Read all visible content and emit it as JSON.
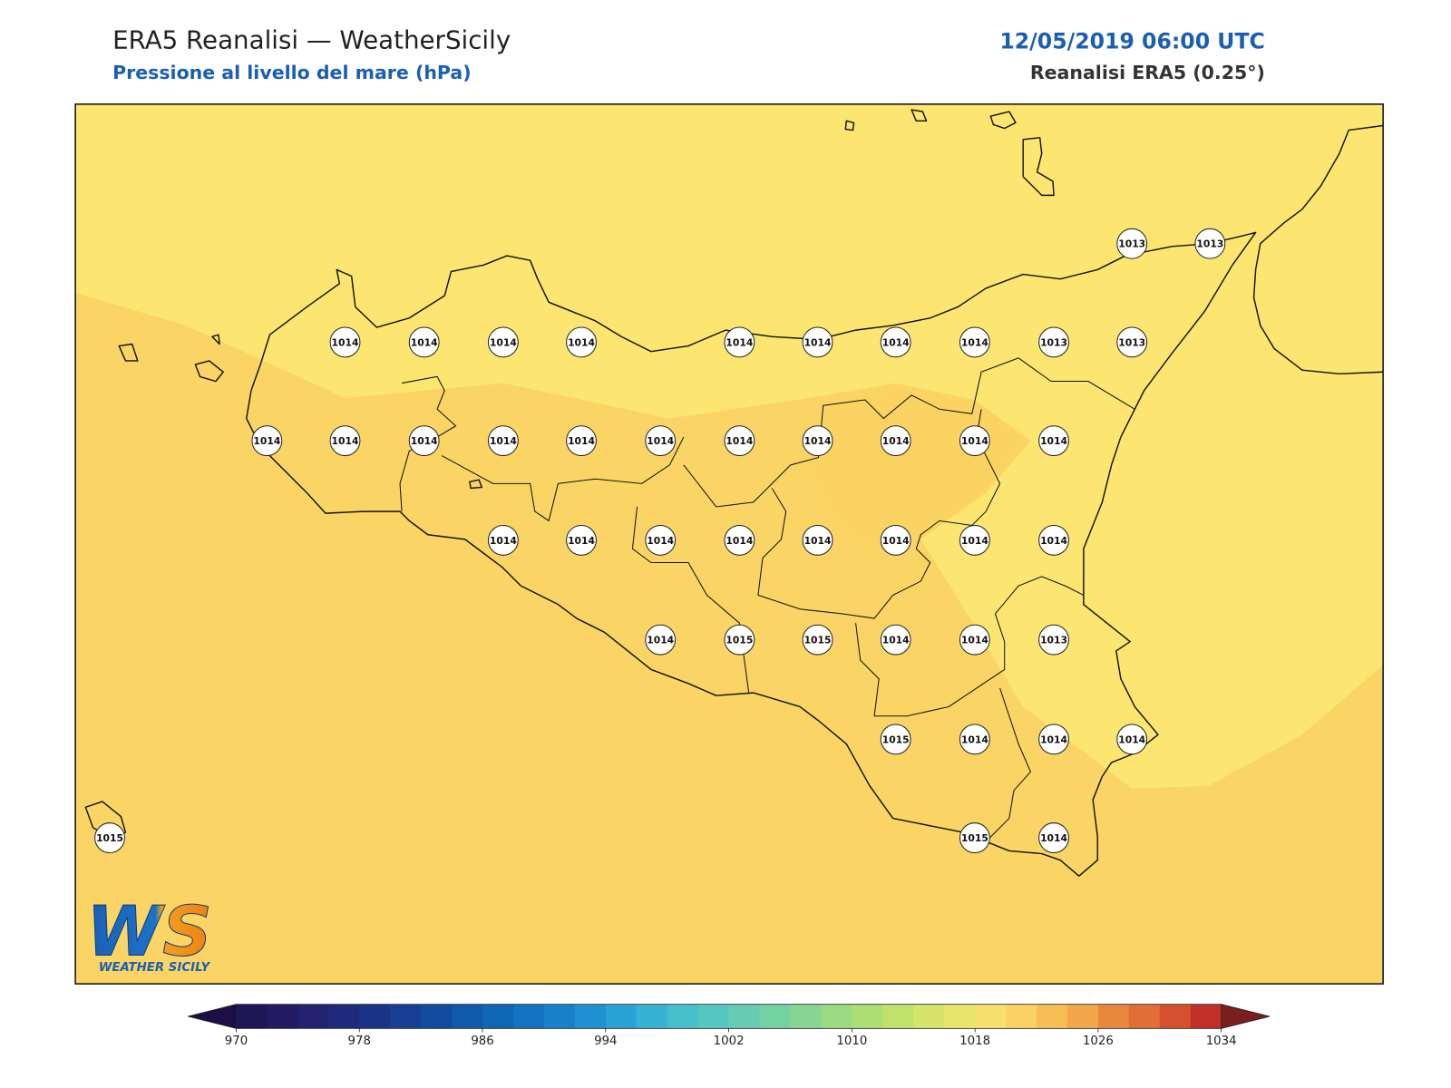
{
  "header": {
    "title": "ERA5 Reanalisi — WeatherSicily",
    "subtitle": "Pressione al livello del mare (hPa)",
    "datetime": "12/05/2019 06:00 UTC",
    "source": "Reanalisi ERA5 (0.25°)"
  },
  "stations": {
    "values": [
      1013,
      1013,
      1014,
      1014,
      1014,
      1014,
      1014,
      1014,
      1014,
      1014,
      1013,
      1013,
      1014,
      1014,
      1014,
      1014,
      1014,
      1014,
      1014,
      1014,
      1014,
      1014,
      1014,
      1014,
      1014,
      1014,
      1014,
      1014,
      1014,
      1014,
      1014,
      1014,
      1015,
      1015,
      1014,
      1014,
      1013,
      1015,
      1014,
      1014,
      1014,
      1015,
      1015,
      1014
    ]
  },
  "colorbar": {
    "lim": [
      970,
      1034
    ],
    "ticks": [
      970,
      978,
      986,
      994,
      1002,
      1010,
      1018,
      1026,
      1034
    ],
    "colors": [
      "#1c0f45",
      "#1f1655",
      "#211b63",
      "#22226f",
      "#1f2a7c",
      "#1b3488",
      "#174094",
      "#134c9f",
      "#1059ab",
      "#0f66b6",
      "#1173c1",
      "#1682cb",
      "#1f91d2",
      "#2aa2d5",
      "#38b2d3",
      "#48bfcc",
      "#56c7c0",
      "#65ccb1",
      "#74d1a2",
      "#86d592",
      "#99da82",
      "#acde73",
      "#c1e269",
      "#d6e569",
      "#e8e56c",
      "#f8e06d",
      "#fbd263",
      "#f7be55",
      "#f2a84a",
      "#e9873c",
      "#e06e35",
      "#d4502e",
      "#c3302a",
      "#7a1e1e"
    ]
  },
  "logo": {
    "mark": "WS",
    "name": "WEATHER SICILY"
  }
}
